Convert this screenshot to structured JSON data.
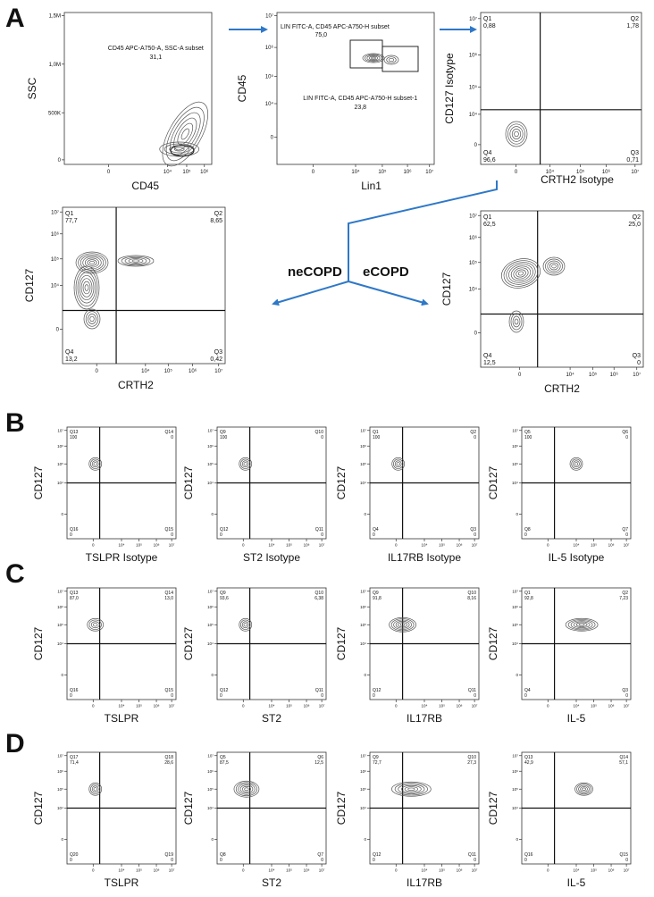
{
  "panel_letters": [
    "A",
    "B",
    "C",
    "D"
  ],
  "conditions": {
    "left": "neCOPD",
    "right": "eCOPD"
  },
  "top": {
    "ssc": {
      "ylabel": "SSC",
      "xlabel": "CD45",
      "yticks": [
        "1,5M",
        "1,0M",
        "500K",
        "0"
      ],
      "xticks": [
        "0",
        "10⁴",
        "10⁵",
        "10⁶"
      ],
      "gate_name": "CD45 APC-A750-A, SSC-A subset",
      "gate_pct": "31,1"
    },
    "lin": {
      "ylabel": "CD45",
      "xlabel": "Lin1",
      "yticks": [
        "10⁷",
        "10⁶",
        "10⁵",
        "10⁴",
        "0"
      ],
      "xticks": [
        "0",
        "10⁴",
        "10⁵",
        "10⁶",
        "10⁷"
      ],
      "gate1_name": "LIN FITC-A, CD45 APC-A750-H subset",
      "gate1_pct": "75,0",
      "gate2_name": "LIN FITC-A, CD45 APC-A750-H subset-1",
      "gate2_pct": "23,8"
    },
    "iso": {
      "ylabel": "CD127 Isotype",
      "xlabel": "CRTH2 Isotype",
      "yticks": [
        "10⁷",
        "10⁶",
        "10⁵",
        "10⁴",
        "0"
      ],
      "xticks": [
        "0",
        "10⁴",
        "10⁵",
        "10⁶",
        "10⁷"
      ],
      "q": [
        {
          "name": "Q1",
          "val": "0,88"
        },
        {
          "name": "Q2",
          "val": "1,78"
        },
        {
          "name": "Q3",
          "val": "0,71"
        },
        {
          "name": "Q4",
          "val": "96,6"
        }
      ]
    },
    "ne": {
      "ylabel": "CD127",
      "xlabel": "CRTH2",
      "yticks": [
        "10⁷",
        "10⁶",
        "10⁵",
        "10⁴",
        "0"
      ],
      "xticks": [
        "0",
        "10⁴",
        "10⁵",
        "10⁶",
        "10⁷"
      ],
      "q": [
        {
          "name": "Q1",
          "val": "77,7"
        },
        {
          "name": "Q2",
          "val": "8,65"
        },
        {
          "name": "Q3",
          "val": "0,42"
        },
        {
          "name": "Q4",
          "val": "13,2"
        }
      ]
    },
    "e": {
      "ylabel": "CD127",
      "xlabel": "CRTH2",
      "yticks": [
        "10⁷",
        "10⁶",
        "10⁵",
        "10⁴",
        "0"
      ],
      "xticks": [
        "0",
        "10⁴",
        "10⁵",
        "10⁶",
        "10⁷"
      ],
      "q": [
        {
          "name": "Q1",
          "val": "62,5"
        },
        {
          "name": "Q2",
          "val": "25,0"
        },
        {
          "name": "Q3",
          "val": "0"
        },
        {
          "name": "Q4",
          "val": "12,5"
        }
      ]
    }
  },
  "small_yticks": [
    "10⁷",
    "10⁶",
    "10⁵",
    "10⁴",
    "0"
  ],
  "small_xticks": [
    "0",
    "10⁴",
    "10⁵",
    "10⁶",
    "10⁷"
  ],
  "rows": {
    "B": [
      {
        "xlabel": "TSLPR Isotype",
        "ylabel": "CD127",
        "q": [
          [
            "Q13",
            "100"
          ],
          [
            "Q14",
            "0"
          ],
          [
            "Q15",
            "0"
          ],
          [
            "Q16",
            "0"
          ]
        ]
      },
      {
        "xlabel": "ST2 Isotype",
        "ylabel": "CD127",
        "q": [
          [
            "Q9",
            "100"
          ],
          [
            "Q10",
            "0"
          ],
          [
            "Q11",
            "0"
          ],
          [
            "Q12",
            "0"
          ]
        ]
      },
      {
        "xlabel": "IL17RB Isotype",
        "ylabel": "CD127",
        "q": [
          [
            "Q1",
            "100"
          ],
          [
            "Q2",
            "0"
          ],
          [
            "Q3",
            "0"
          ],
          [
            "Q4",
            "0"
          ]
        ]
      },
      {
        "xlabel": "IL-5 Isotype",
        "ylabel": "CD127",
        "q": [
          [
            "Q5",
            "100"
          ],
          [
            "Q6",
            "0"
          ],
          [
            "Q7",
            "0"
          ],
          [
            "Q8",
            "0"
          ]
        ]
      }
    ],
    "C": [
      {
        "xlabel": "TSLPR",
        "ylabel": "CD127",
        "q": [
          [
            "Q13",
            "87,0"
          ],
          [
            "Q14",
            "13,0"
          ],
          [
            "Q15",
            "0"
          ],
          [
            "Q16",
            "0"
          ]
        ]
      },
      {
        "xlabel": "ST2",
        "ylabel": "CD127",
        "q": [
          [
            "Q9",
            "93,6"
          ],
          [
            "Q10",
            "6,38"
          ],
          [
            "Q11",
            "0"
          ],
          [
            "Q12",
            "0"
          ]
        ]
      },
      {
        "xlabel": "IL17RB",
        "ylabel": "CD127",
        "q": [
          [
            "Q9",
            "91,8"
          ],
          [
            "Q10",
            "8,16"
          ],
          [
            "Q11",
            "0"
          ],
          [
            "Q12",
            "0"
          ]
        ]
      },
      {
        "xlabel": "IL-5",
        "ylabel": "CD127",
        "q": [
          [
            "Q1",
            "92,8"
          ],
          [
            "Q2",
            "7,23"
          ],
          [
            "Q3",
            "0"
          ],
          [
            "Q4",
            "0"
          ]
        ]
      }
    ],
    "D": [
      {
        "xlabel": "TSLPR",
        "ylabel": "CD127",
        "q": [
          [
            "Q17",
            "71,4"
          ],
          [
            "Q18",
            "28,6"
          ],
          [
            "Q19",
            "0"
          ],
          [
            "Q20",
            "0"
          ]
        ]
      },
      {
        "xlabel": "ST2",
        "ylabel": "CD127",
        "q": [
          [
            "Q5",
            "87,5"
          ],
          [
            "Q6",
            "12,5"
          ],
          [
            "Q7",
            "0"
          ],
          [
            "Q8",
            "0"
          ]
        ]
      },
      {
        "xlabel": "IL17RB",
        "ylabel": "CD127",
        "q": [
          [
            "Q9",
            "72,7"
          ],
          [
            "Q10",
            "27,3"
          ],
          [
            "Q11",
            "0"
          ],
          [
            "Q12",
            "0"
          ]
        ]
      },
      {
        "xlabel": "IL-5",
        "ylabel": "CD127",
        "q": [
          [
            "Q13",
            "42,9"
          ],
          [
            "Q14",
            "57,1"
          ],
          [
            "Q15",
            "0"
          ],
          [
            "Q16",
            "0"
          ]
        ]
      }
    ]
  },
  "colors": {
    "arrow": "#2e78c8",
    "axis": "#333333",
    "contour": "#555555"
  }
}
